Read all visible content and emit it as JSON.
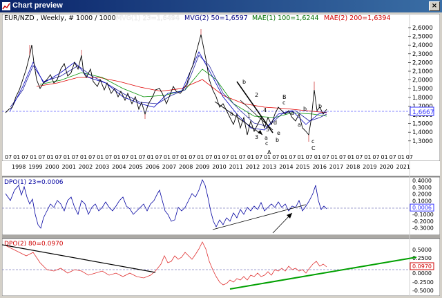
{
  "window": {
    "title": "Chart preview",
    "close_glyph": "×",
    "icon": "chart-icon"
  },
  "colors": {
    "bg": "#ffffff",
    "price": "#000000",
    "mvg1": "#0000c0",
    "mvg2": "#1f1f9f",
    "mae1": "#009000",
    "mae2": "#e00000",
    "dpo1": "#0000a0",
    "dpo2": "#d00000",
    "grid": "#9090c0",
    "current": "#3030ff",
    "ltline1": "#000000",
    "ltline2": "#00aa00"
  },
  "legend": [
    {
      "text": "EUR/NZD , Weekly, # 1000 / 1000",
      "color": "#000000"
    },
    {
      "text": "MVG(1) 23=1,6494",
      "color": "#ffffff"
    },
    {
      "text": "MVG(2) 50=1,6597",
      "color": "#000080"
    },
    {
      "text": "MAE(1) 100=1,6244",
      "color": "#007000"
    },
    {
      "text": "MAE(2) 200=1,6394",
      "color": "#d00000"
    }
  ],
  "price_axis": [
    "2,6000",
    "2,5000",
    "2,4000",
    "2,3000",
    "2,2000",
    "2,1000",
    "2,0000",
    "1,9000",
    "1,8000",
    "1,7000",
    "1,6000",
    "1,5000",
    "1,4000",
    "1,3000"
  ],
  "price_current": "1,6667",
  "months_row": [
    "07",
    "01",
    "07",
    "01",
    "07",
    "01",
    "07",
    "01",
    "07",
    "01",
    "07",
    "01",
    "07",
    "01",
    "07",
    "01",
    "07",
    "01",
    "07",
    "01",
    "07",
    "01",
    "07",
    "01",
    "07",
    "01",
    "07",
    "01",
    "07",
    "01",
    "07",
    "01",
    "07",
    "01",
    "07",
    "01",
    "07",
    "01",
    "07",
    "01",
    "07",
    "01",
    "07",
    "01",
    "07",
    "01",
    "07",
    "01",
    "07"
  ],
  "years_row": [
    "1998",
    "1999",
    "2000",
    "2001",
    "2002",
    "2003",
    "2004",
    "2005",
    "2006",
    "2007",
    "2008",
    "2009",
    "2010",
    "2011",
    "2012",
    "2013",
    "2014",
    "2015",
    "2016",
    "2017",
    "2018",
    "2019",
    "2020",
    "2021"
  ],
  "wave_labels": [
    "b",
    "a",
    "1",
    "2",
    "3",
    "4",
    "5",
    "a",
    "b",
    "c",
    "d",
    "e",
    "A",
    "B",
    "c",
    "a",
    "b",
    "c",
    "C",
    "b",
    "a"
  ],
  "dpo1": {
    "label": "DPO(1) 23=0.0006",
    "axis": [
      "0.4000",
      "0.3000",
      "0.2000",
      "0.1000",
      "0.0006",
      "-0.1000",
      "-0.2000",
      "-0.3000"
    ]
  },
  "dpo2": {
    "label": "DPO(2) 80=0.0970",
    "axis": [
      "0.5000",
      "0.2500",
      "0.0970",
      "0.0000",
      "-0.2500",
      "-0.5000"
    ]
  }
}
